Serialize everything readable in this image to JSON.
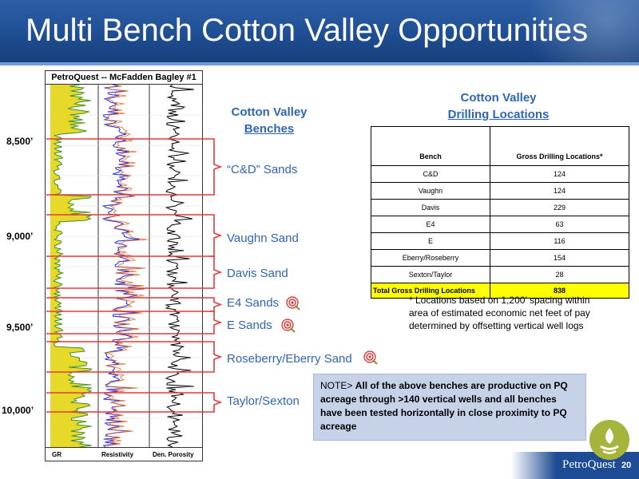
{
  "header": {
    "title": "Multi Bench Cotton Valley Opportunities"
  },
  "log": {
    "title": "PetroQuest -- McFadden Bagley #1",
    "tracks": [
      "GR",
      "Resistivity",
      "Den. Porosity"
    ],
    "depths": [
      "8,500’",
      "9,000’",
      "9,500’",
      "10,000’"
    ]
  },
  "benches": {
    "heading_line1": "Cotton Valley",
    "heading_line2": "Benches",
    "items": [
      {
        "label": "“C&D” Sands",
        "target": false
      },
      {
        "label": "Vaughn Sand",
        "target": false
      },
      {
        "label": "Davis Sand",
        "target": false
      },
      {
        "label": "E4 Sands",
        "target": true
      },
      {
        "label": "E Sands",
        "target": true
      },
      {
        "label": "Roseberry/Eberry Sand",
        "target": true
      },
      {
        "label": "Taylor/Sexton",
        "target": false
      }
    ]
  },
  "drilling_locations": {
    "heading_line1": "Cotton Valley",
    "heading_line2": "Drilling Locations",
    "columns": [
      "Bench",
      "Gross Drilling Locations*"
    ],
    "rows": [
      {
        "bench": "C&D",
        "locations": "124"
      },
      {
        "bench": "Vaughn",
        "locations": "124"
      },
      {
        "bench": "Davis",
        "locations": "229"
      },
      {
        "bench": "E4",
        "locations": "63"
      },
      {
        "bench": "E",
        "locations": "116"
      },
      {
        "bench": "Eberry/Roseberry",
        "locations": "154"
      },
      {
        "bench": "Sexton/Taylor",
        "locations": "28"
      }
    ],
    "total_label": "Total Gross Drilling Locations",
    "total_value": "838",
    "footnote": "* Locations based on 1,200’ spacing within area of estimated economic net feet of pay determined by offsetting vertical well logs"
  },
  "note": {
    "prefix": "NOTE> ",
    "text": "All of the above benches are productive on PQ acreage through >140 vertical wells and all benches have been tested horizontally in close proximity to PQ acreage"
  },
  "footer": {
    "brand": "PetroQuest",
    "page_number": "20"
  },
  "colors": {
    "accent_blue": "#2f66b3",
    "header_blue": "#1f4e93",
    "bench_red": "#e23b3b",
    "total_yellow": "#ffff00"
  }
}
